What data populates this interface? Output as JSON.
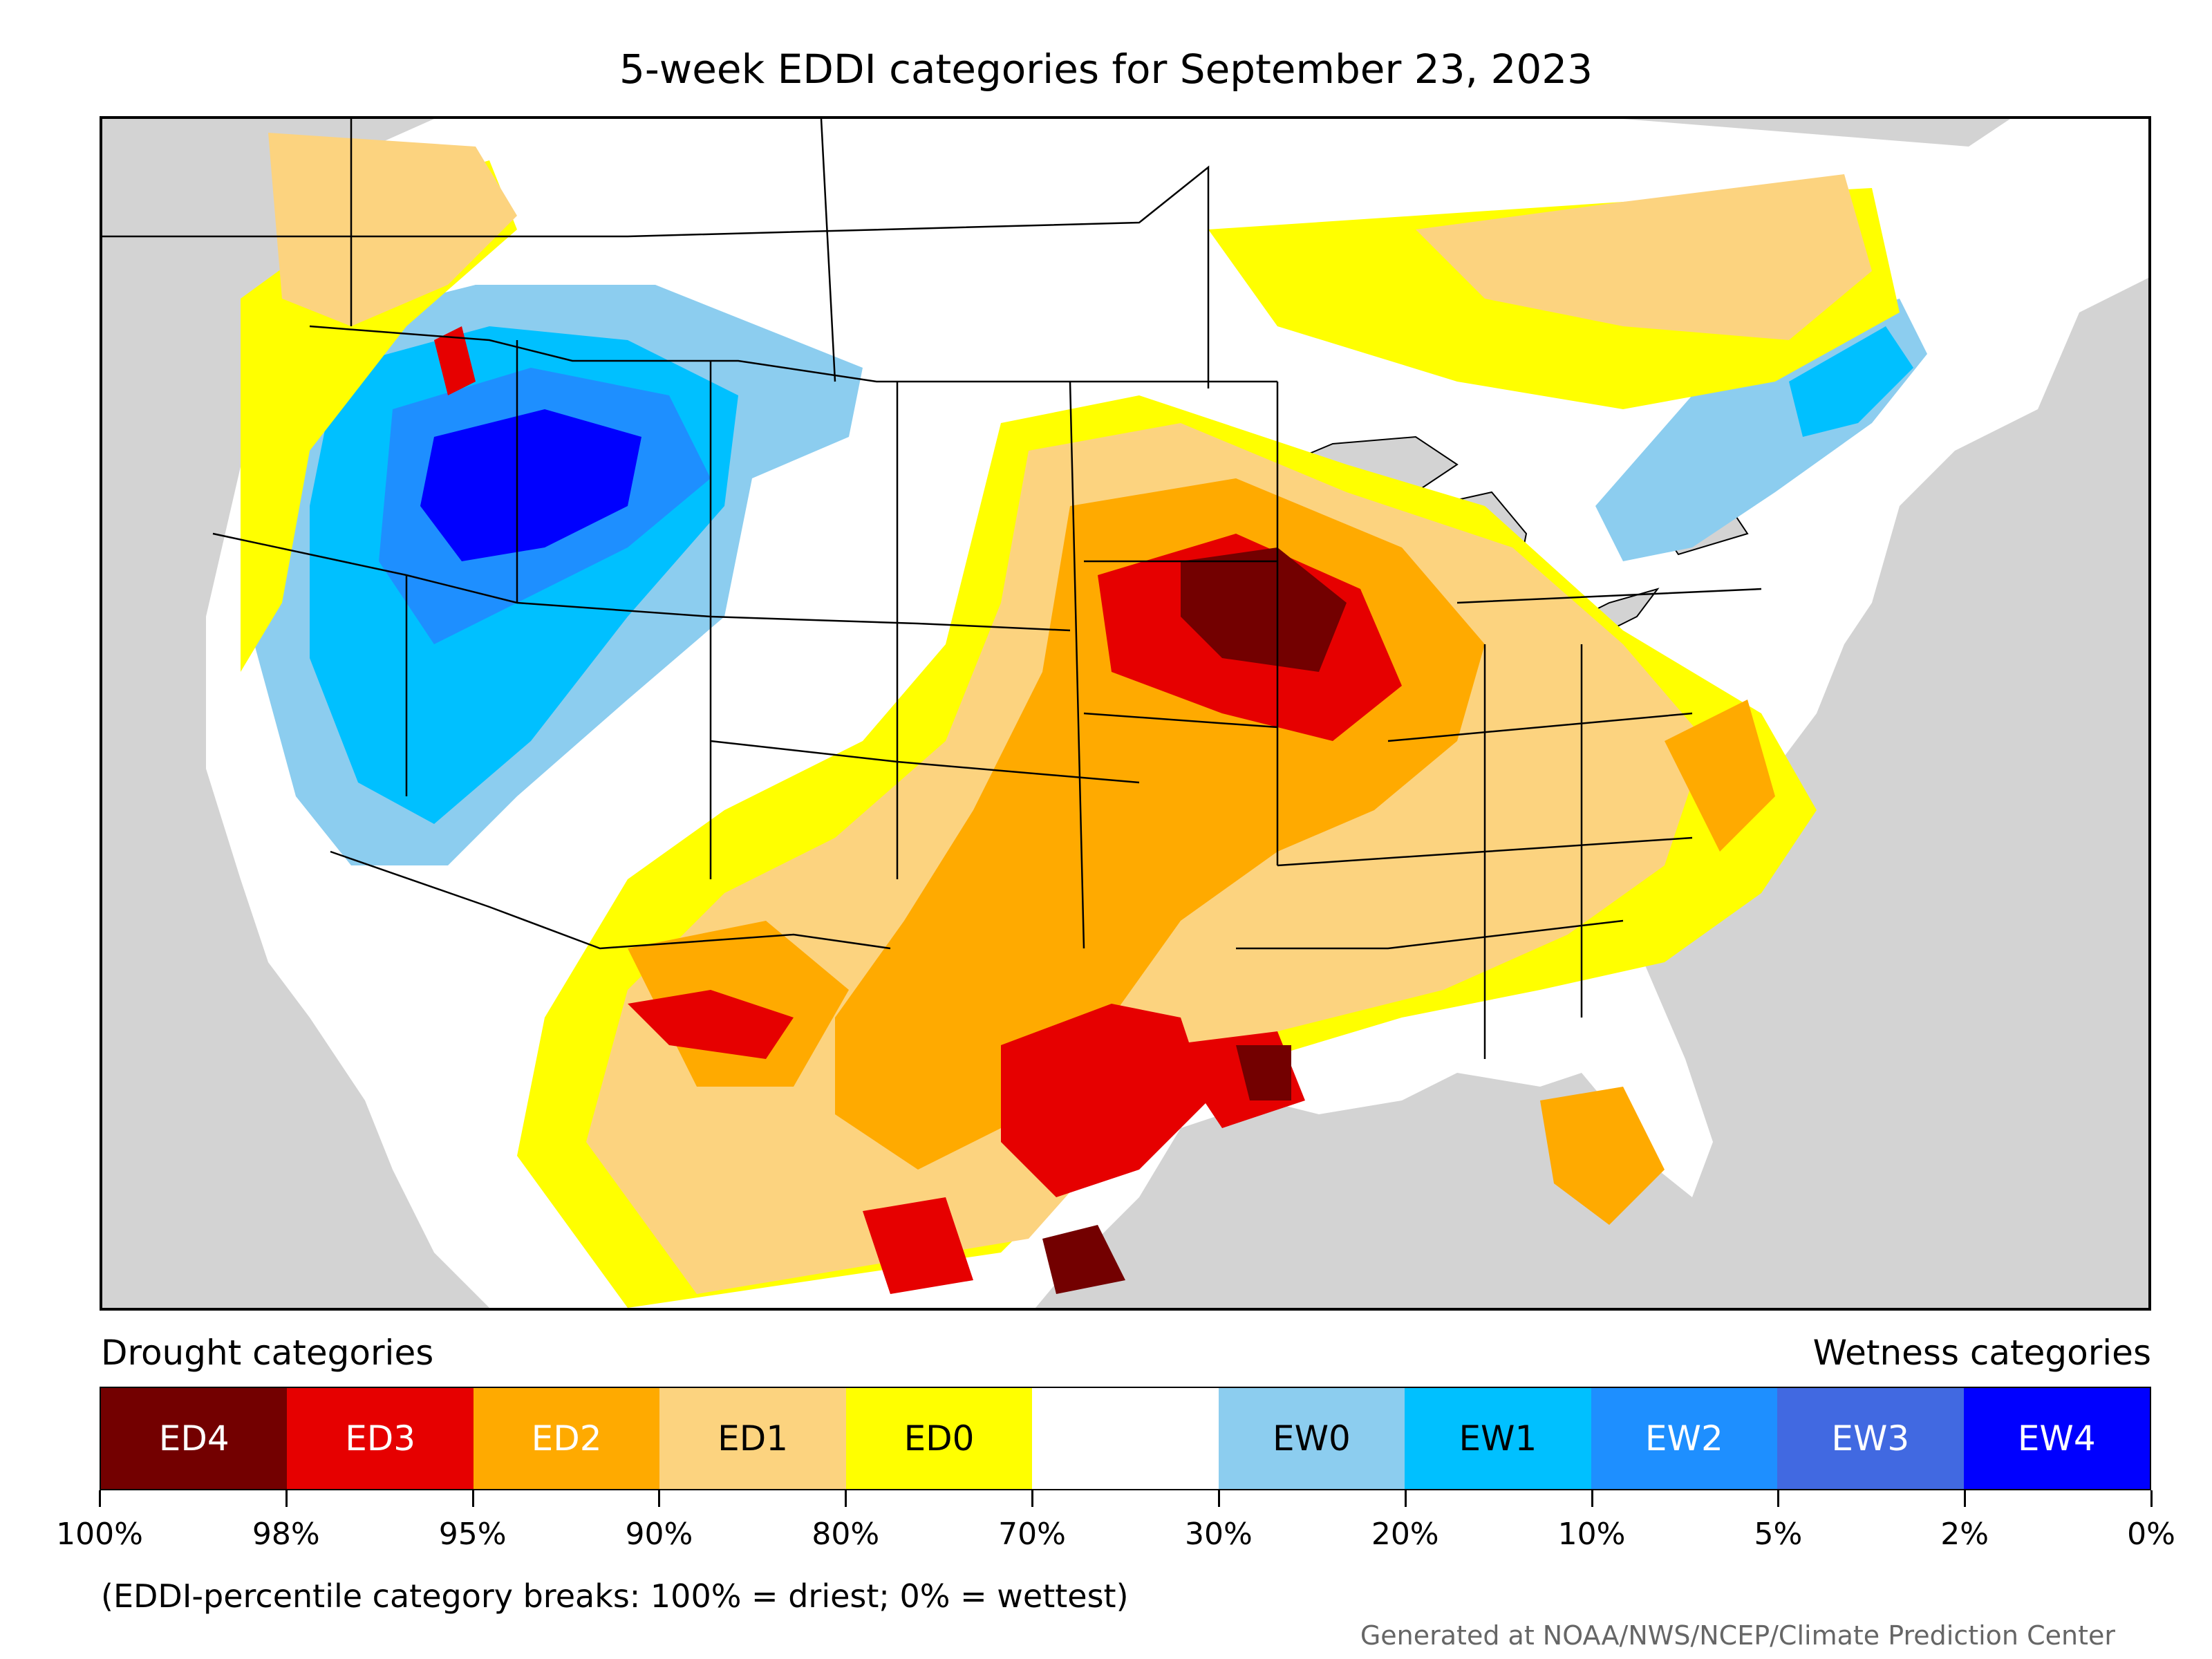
{
  "title": "5-week EDDI categories for September 23, 2023",
  "legend": {
    "drought_header": "Drought categories",
    "wetness_header": "Wetness categories",
    "categories": [
      {
        "label": "ED4",
        "color": "#730000",
        "text_color": "#ffffff"
      },
      {
        "label": "ED3",
        "color": "#e60000",
        "text_color": "#ffffff"
      },
      {
        "label": "ED2",
        "color": "#ffaa00",
        "text_color": "#ffffff"
      },
      {
        "label": "ED1",
        "color": "#fcd37f",
        "text_color": "#000000"
      },
      {
        "label": "ED0",
        "color": "#ffff00",
        "text_color": "#000000"
      },
      {
        "label": "",
        "color": "#ffffff",
        "text_color": "#000000"
      },
      {
        "label": "EW0",
        "color": "#8ccdef",
        "text_color": "#000000"
      },
      {
        "label": "EW1",
        "color": "#00c0ff",
        "text_color": "#000000"
      },
      {
        "label": "EW2",
        "color": "#1e8fff",
        "text_color": "#ffffff"
      },
      {
        "label": "EW3",
        "color": "#4169e1",
        "text_color": "#ffffff"
      },
      {
        "label": "EW4",
        "color": "#0000ff",
        "text_color": "#ffffff"
      }
    ],
    "breaks": [
      "100%",
      "98%",
      "95%",
      "90%",
      "80%",
      "70%",
      "30%",
      "20%",
      "10%",
      "5%",
      "2%",
      "0%"
    ]
  },
  "note": "(EDDI-percentile category breaks: 100% = driest; 0% = wettest)",
  "credit": "Generated at NOAA/NWS/NCEP/Climate Prediction Center",
  "map": {
    "background_color": "#d3d3d3",
    "land_color": "#ffffff",
    "border_color": "#000000"
  }
}
